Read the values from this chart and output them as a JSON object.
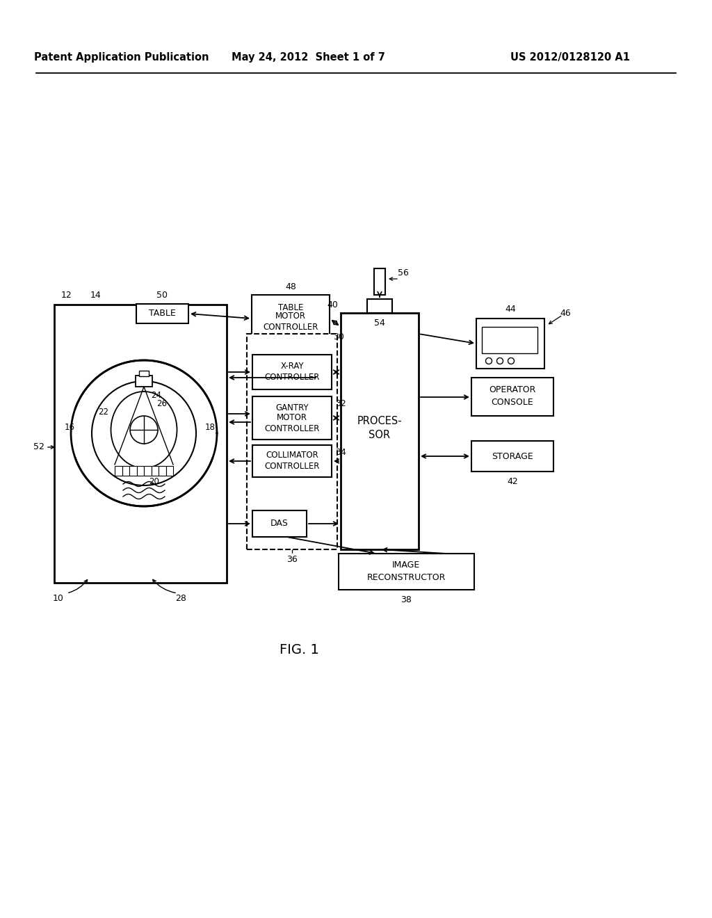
{
  "bg_color": "#ffffff",
  "line_color": "#000000",
  "header_left": "Patent Application Publication",
  "header_center": "May 24, 2012  Sheet 1 of 7",
  "header_right": "US 2012/0128120 A1",
  "fig_label": "FIG. 1"
}
